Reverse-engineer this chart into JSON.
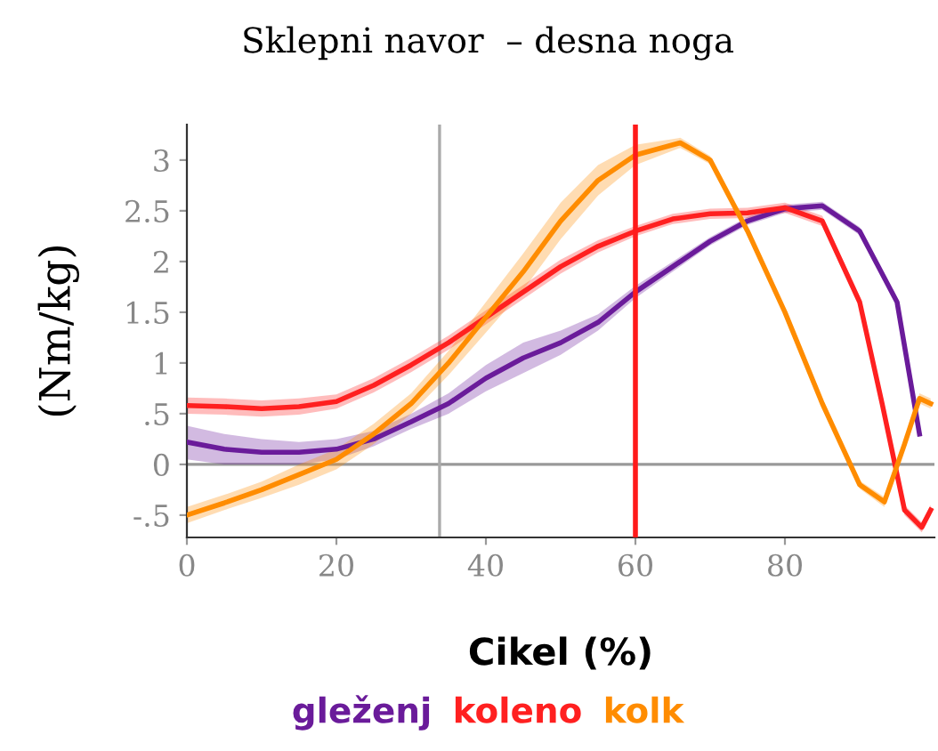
{
  "chart_data": {
    "type": "line",
    "title": "Sklepni navor  – desna noga",
    "xlabel": "Cikel (%)",
    "ylabel": "(Nm/kg)",
    "xlim": [
      0,
      100
    ],
    "ylim": [
      -0.72,
      3.35
    ],
    "xticks": [
      0,
      20,
      40,
      60,
      80
    ],
    "yticks": [
      {
        "value": -0.5,
        "label": "-.5"
      },
      0,
      {
        "value": 0.5,
        "label": ".5"
      },
      1,
      1.5,
      2,
      2.5,
      3
    ],
    "grid": false,
    "legend": "bottom",
    "line_style": "solid",
    "marker": "none",
    "ref_lines": [
      {
        "axis": "y",
        "value": 0,
        "color": "#999999"
      },
      {
        "axis": "x",
        "value": 33.8,
        "color": "#aaaaaa"
      },
      {
        "axis": "x",
        "value": 60,
        "color": "#ff1a1a"
      }
    ],
    "series": [
      {
        "name": "gleženj",
        "color": "#6a1b9a",
        "x": [
          0,
          5,
          10,
          15,
          20,
          25,
          30,
          35,
          40,
          45,
          50,
          55,
          60,
          65,
          70,
          75,
          80,
          85,
          90,
          95,
          98
        ],
        "values": [
          0.22,
          0.15,
          0.12,
          0.12,
          0.15,
          0.25,
          0.42,
          0.6,
          0.85,
          1.05,
          1.2,
          1.4,
          1.7,
          1.95,
          2.2,
          2.4,
          2.52,
          2.55,
          2.3,
          1.6,
          0.3
        ],
        "lower": [
          0.05,
          0.0,
          0.0,
          0.0,
          0.05,
          0.18,
          0.35,
          0.5,
          0.72,
          0.9,
          1.08,
          1.32,
          1.64,
          1.9,
          2.16,
          2.36,
          2.48,
          2.51,
          2.26,
          1.56,
          0.26
        ],
        "upper": [
          0.38,
          0.3,
          0.25,
          0.22,
          0.25,
          0.33,
          0.5,
          0.7,
          0.98,
          1.2,
          1.32,
          1.48,
          1.76,
          2.0,
          2.24,
          2.44,
          2.56,
          2.59,
          2.34,
          1.64,
          0.34
        ]
      },
      {
        "name": "koleno",
        "color": "#ff2020",
        "x": [
          0,
          5,
          10,
          15,
          20,
          25,
          30,
          35,
          40,
          45,
          50,
          55,
          60,
          65,
          70,
          75,
          80,
          85,
          90,
          93,
          96,
          98.3,
          99.5
        ],
        "values": [
          0.58,
          0.57,
          0.55,
          0.57,
          0.62,
          0.78,
          0.98,
          1.2,
          1.45,
          1.7,
          1.95,
          2.15,
          2.3,
          2.42,
          2.47,
          2.48,
          2.53,
          2.4,
          1.6,
          0.6,
          -0.45,
          -0.62,
          -0.45
        ],
        "lower": [
          0.5,
          0.49,
          0.47,
          0.49,
          0.55,
          0.71,
          0.91,
          1.13,
          1.38,
          1.63,
          1.88,
          2.09,
          2.25,
          2.37,
          2.42,
          2.43,
          2.48,
          2.35,
          1.55,
          0.55,
          -0.5,
          -0.67,
          -0.5
        ],
        "upper": [
          0.66,
          0.65,
          0.63,
          0.65,
          0.69,
          0.85,
          1.05,
          1.27,
          1.52,
          1.77,
          2.02,
          2.21,
          2.35,
          2.47,
          2.52,
          2.53,
          2.58,
          2.45,
          1.65,
          0.65,
          -0.4,
          -0.57,
          -0.4
        ]
      },
      {
        "name": "kolk",
        "color": "#ff8c00",
        "x": [
          0,
          5,
          10,
          15,
          20,
          25,
          30,
          35,
          40,
          45,
          50,
          55,
          60,
          66,
          70,
          75,
          80,
          85,
          90,
          93.3,
          96,
          98,
          99.5
        ],
        "values": [
          -0.5,
          -0.38,
          -0.25,
          -0.1,
          0.05,
          0.3,
          0.6,
          1.0,
          1.45,
          1.9,
          2.4,
          2.8,
          3.05,
          3.17,
          3.0,
          2.3,
          1.5,
          0.6,
          -0.2,
          -0.37,
          0.2,
          0.65,
          0.6
        ],
        "lower": [
          -0.58,
          -0.45,
          -0.33,
          -0.2,
          -0.05,
          0.2,
          0.5,
          0.88,
          1.3,
          1.72,
          2.22,
          2.65,
          2.95,
          3.12,
          2.96,
          2.26,
          1.46,
          0.56,
          -0.24,
          -0.42,
          0.16,
          0.6,
          0.55
        ],
        "upper": [
          -0.42,
          -0.3,
          -0.17,
          0.0,
          0.15,
          0.4,
          0.7,
          1.12,
          1.6,
          2.08,
          2.58,
          2.95,
          3.15,
          3.22,
          3.04,
          2.34,
          1.54,
          0.64,
          -0.16,
          -0.32,
          0.24,
          0.7,
          0.65
        ]
      }
    ]
  }
}
